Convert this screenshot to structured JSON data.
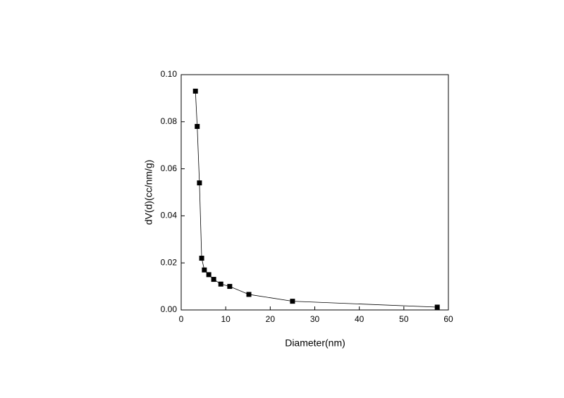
{
  "chart_data": {
    "type": "line",
    "x_label": "Diameter(nm)",
    "y_label": "dV(d)(cc/nm/g)",
    "series": [
      {
        "color": "#000000",
        "x": [
          3.2,
          3.6,
          4.1,
          4.6,
          5.2,
          6.2,
          7.3,
          8.9,
          10.9,
          15.2,
          25.0,
          57.5
        ],
        "values": [
          0.093,
          0.078,
          0.054,
          0.022,
          0.017,
          0.015,
          0.013,
          0.011,
          0.01,
          0.0066,
          0.0037,
          0.0012
        ]
      }
    ],
    "xlim": [
      0,
      60
    ],
    "xticks": [
      0,
      10,
      20,
      30,
      40,
      50,
      60
    ],
    "ylim": [
      0,
      0.1
    ],
    "yticks": [
      {
        "value": 0,
        "label": "0.00"
      },
      {
        "value": 0.02,
        "label": "0.02"
      },
      {
        "value": 0.04,
        "label": "0.04"
      },
      {
        "value": 0.06,
        "label": "0.06"
      },
      {
        "value": 0.08,
        "label": "0.08"
      },
      {
        "value": 0.1,
        "label": "0.10"
      }
    ],
    "grid": false
  }
}
